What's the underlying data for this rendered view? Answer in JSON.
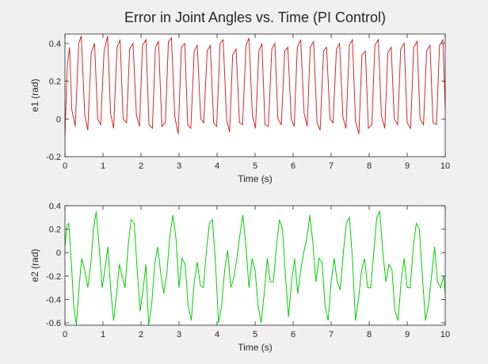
{
  "figure": {
    "background": "#f0f0f0"
  },
  "chart_data": [
    {
      "type": "line",
      "title": "Error in Joint Angles vs. Time (PI Control)",
      "xlabel": "Time (s)",
      "ylabel": "e1 (rad)",
      "xlim": [
        0,
        10
      ],
      "ylim": [
        -0.2,
        0.45
      ],
      "xticks": [
        0,
        1,
        2,
        3,
        4,
        5,
        6,
        7,
        8,
        9,
        10
      ],
      "yticks": [
        -0.2,
        0,
        0.2,
        0.4
      ],
      "xtick_labels": [
        "0",
        "1",
        "2",
        "3",
        "4",
        "5",
        "6",
        "7",
        "8",
        "9",
        "10"
      ],
      "ytick_labels": [
        "-0.2",
        "0",
        "0.2",
        "0.4"
      ],
      "grid": false,
      "series": [
        {
          "color": "#d62728",
          "x": [
            0,
            0.06,
            0.12,
            0.18,
            0.27,
            0.36,
            0.43,
            0.52,
            0.6,
            0.69,
            0.78,
            0.86,
            0.94,
            1.03,
            1.12,
            1.2,
            1.28,
            1.37,
            1.45,
            1.53,
            1.62,
            1.7,
            1.79,
            1.88,
            1.96,
            2.04,
            2.13,
            2.21,
            2.3,
            2.38,
            2.46,
            2.55,
            2.64,
            2.72,
            2.8,
            2.89,
            2.98,
            3.06,
            3.15,
            3.23,
            3.31,
            3.4,
            3.48,
            3.57,
            3.65,
            3.74,
            3.82,
            3.91,
            3.99,
            4.08,
            4.16,
            4.25,
            4.33,
            4.41,
            4.5,
            4.59,
            4.67,
            4.76,
            4.84,
            4.93,
            5.01,
            5.1,
            5.18,
            5.26,
            5.35,
            5.44,
            5.52,
            5.6,
            5.69,
            5.78,
            5.86,
            5.95,
            6.03,
            6.11,
            6.2,
            6.29,
            6.37,
            6.45,
            6.54,
            6.63,
            6.71,
            6.8,
            6.88,
            6.97,
            7.05,
            7.14,
            7.22,
            7.31,
            7.39,
            7.48,
            7.56,
            7.64,
            7.73,
            7.81,
            7.9,
            7.98,
            8.07,
            8.15,
            8.24,
            8.32,
            8.41,
            8.49,
            8.58,
            8.66,
            8.75,
            8.83,
            8.92,
            9.0,
            9.09,
            9.17,
            9.26,
            9.34,
            9.43,
            9.51,
            9.6,
            9.68,
            9.77,
            9.85,
            9.94,
            10.0
          ],
          "y": [
            -0.1,
            0.28,
            0.38,
            0.05,
            -0.04,
            0.4,
            0.44,
            0.02,
            -0.06,
            0.35,
            0.4,
            0.0,
            -0.03,
            0.36,
            0.44,
            0.03,
            -0.05,
            0.38,
            0.42,
            0.0,
            -0.02,
            0.37,
            0.4,
            0.02,
            -0.04,
            0.39,
            0.42,
            -0.03,
            -0.05,
            0.38,
            0.41,
            -0.04,
            -0.02,
            0.41,
            0.43,
            0.01,
            -0.08,
            0.38,
            0.4,
            -0.03,
            -0.05,
            0.36,
            0.39,
            0.0,
            -0.02,
            0.36,
            0.39,
            -0.02,
            -0.04,
            0.4,
            0.42,
            0.0,
            -0.07,
            0.34,
            0.37,
            -0.02,
            -0.03,
            0.39,
            0.43,
            0.02,
            -0.05,
            0.36,
            0.4,
            -0.03,
            -0.04,
            0.37,
            0.4,
            0.0,
            -0.03,
            0.36,
            0.38,
            0.0,
            -0.04,
            0.38,
            0.42,
            0.03,
            -0.04,
            0.38,
            0.41,
            -0.02,
            -0.06,
            0.36,
            0.38,
            0.0,
            -0.02,
            0.37,
            0.4,
            0.01,
            -0.05,
            0.39,
            0.42,
            -0.01,
            -0.08,
            0.34,
            0.36,
            -0.05,
            -0.03,
            0.39,
            0.42,
            0.02,
            -0.05,
            0.35,
            0.38,
            0.0,
            -0.03,
            0.37,
            0.4,
            -0.02,
            -0.05,
            0.38,
            0.41,
            0.0,
            -0.03,
            0.36,
            0.39,
            -0.02,
            -0.03,
            0.39,
            0.42,
            0.05
          ]
        }
      ]
    },
    {
      "type": "line",
      "title": "",
      "xlabel": "Time (s)",
      "ylabel": "e2 (rad)",
      "xlim": [
        0,
        10
      ],
      "ylim": [
        -0.62,
        0.4
      ],
      "xticks": [
        0,
        1,
        2,
        3,
        4,
        5,
        6,
        7,
        8,
        9,
        10
      ],
      "yticks": [
        -0.6,
        -0.4,
        -0.2,
        0,
        0.2,
        0.4
      ],
      "xtick_labels": [
        "0",
        "1",
        "2",
        "3",
        "4",
        "5",
        "6",
        "7",
        "8",
        "9",
        "10"
      ],
      "ytick_labels": [
        "-0.6",
        "-0.4",
        "-0.2",
        "0",
        "0.2",
        "0.4"
      ],
      "grid": false,
      "series": [
        {
          "color": "#00d000",
          "x": [
            0,
            0.05,
            0.1,
            0.17,
            0.23,
            0.3,
            0.37,
            0.44,
            0.52,
            0.6,
            0.68,
            0.75,
            0.82,
            0.9,
            0.98,
            1.06,
            1.13,
            1.2,
            1.28,
            1.36,
            1.43,
            1.5,
            1.58,
            1.66,
            1.74,
            1.82,
            1.9,
            1.98,
            2.06,
            2.13,
            2.2,
            2.28,
            2.36,
            2.44,
            2.52,
            2.6,
            2.68,
            2.76,
            2.84,
            2.92,
            3.0,
            3.08,
            3.16,
            3.24,
            3.32,
            3.4,
            3.48,
            3.56,
            3.64,
            3.72,
            3.8,
            3.88,
            3.96,
            4.04,
            4.12,
            4.2,
            4.28,
            4.36,
            4.44,
            4.52,
            4.6,
            4.68,
            4.76,
            4.84,
            4.92,
            5.0,
            5.08,
            5.16,
            5.24,
            5.32,
            5.4,
            5.48,
            5.56,
            5.64,
            5.72,
            5.8,
            5.88,
            5.96,
            6.04,
            6.12,
            6.2,
            6.28,
            6.36,
            6.44,
            6.52,
            6.6,
            6.68,
            6.76,
            6.84,
            6.92,
            7.0,
            7.08,
            7.16,
            7.24,
            7.32,
            7.4,
            7.48,
            7.56,
            7.64,
            7.72,
            7.8,
            7.88,
            7.96,
            8.04,
            8.12,
            8.2,
            8.28,
            8.36,
            8.44,
            8.52,
            8.6,
            8.68,
            8.76,
            8.84,
            8.92,
            9.0,
            9.08,
            9.16,
            9.24,
            9.32,
            9.4,
            9.48,
            9.56,
            9.64,
            9.72,
            9.8,
            9.88,
            9.96,
            10.0
          ],
          "y": [
            0.05,
            0.22,
            0.25,
            -0.1,
            -0.45,
            -0.62,
            -0.3,
            -0.05,
            -0.15,
            -0.3,
            -0.1,
            0.2,
            0.35,
            0.05,
            -0.3,
            -0.12,
            0.05,
            -0.3,
            -0.58,
            -0.35,
            -0.1,
            -0.2,
            -0.3,
            0.05,
            0.28,
            0.25,
            -0.15,
            -0.5,
            -0.3,
            -0.1,
            -0.62,
            -0.45,
            -0.1,
            0.05,
            -0.18,
            -0.35,
            -0.18,
            0.15,
            0.32,
            0.12,
            -0.3,
            -0.05,
            -0.1,
            -0.45,
            -0.58,
            -0.25,
            -0.08,
            -0.28,
            -0.3,
            0.02,
            0.25,
            0.28,
            -0.1,
            -0.6,
            -0.45,
            -0.15,
            0.02,
            -0.3,
            -0.22,
            -0.05,
            0.15,
            0.32,
            0.05,
            -0.3,
            -0.05,
            -0.15,
            -0.45,
            -0.6,
            -0.35,
            -0.05,
            -0.25,
            -0.25,
            0.05,
            0.28,
            0.2,
            -0.2,
            -0.55,
            -0.25,
            -0.05,
            -0.35,
            -0.15,
            0.0,
            0.12,
            0.32,
            0.08,
            -0.25,
            -0.05,
            -0.08,
            -0.45,
            -0.58,
            -0.25,
            -0.05,
            -0.25,
            -0.32,
            0.0,
            0.25,
            0.3,
            -0.05,
            -0.58,
            -0.4,
            -0.15,
            -0.05,
            -0.3,
            -0.3,
            0.0,
            0.3,
            0.35,
            0.0,
            -0.25,
            -0.1,
            -0.15,
            -0.5,
            -0.58,
            -0.25,
            -0.05,
            -0.3,
            -0.3,
            0.05,
            0.25,
            0.2,
            -0.2,
            -0.58,
            -0.45,
            -0.2,
            0.05,
            -0.25,
            -0.3,
            -0.2,
            -0.35
          ]
        }
      ]
    }
  ]
}
